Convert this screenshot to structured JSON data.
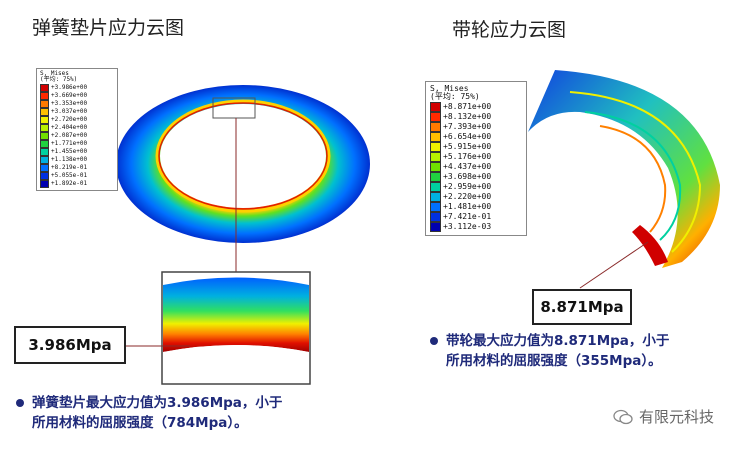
{
  "left": {
    "title": "弹簧垫片应力云图",
    "legend": {
      "header1": "S, Mises",
      "header2": "(平均: 75%)",
      "values": [
        "+3.986e+00",
        "+3.669e+00",
        "+3.353e+00",
        "+3.037e+00",
        "+2.720e+00",
        "+2.404e+00",
        "+2.087e+00",
        "+1.771e+00",
        "+1.455e+00",
        "+1.138e+00",
        "+8.219e-01",
        "+5.055e-01",
        "+1.892e-01"
      ]
    },
    "callout": "3.986Mpa",
    "note_line1": "弹簧垫片最大应力值为3.986Mpa，小于",
    "note_line2": "所用材料的屈服强度（784Mpa）。"
  },
  "right": {
    "title": "带轮应力云图",
    "legend": {
      "header1": "S, Mises",
      "header2": "(平均: 75%)",
      "values": [
        "+8.871e+00",
        "+8.132e+00",
        "+7.393e+00",
        "+6.654e+00",
        "+5.915e+00",
        "+5.176e+00",
        "+4.437e+00",
        "+3.698e+00",
        "+2.959e+00",
        "+2.220e+00",
        "+1.481e+00",
        "+7.421e-01",
        "+3.112e-03"
      ]
    },
    "callout": "8.871Mpa",
    "note_line1": "带轮最大应力值为8.871Mpa，小于",
    "note_line2": "所用材料的屈服强度（355Mpa）。"
  },
  "watermark": "有限元科技",
  "colors": {
    "scale": [
      "#d00000",
      "#ff2a00",
      "#ff7a00",
      "#ffc000",
      "#f0f000",
      "#b8f000",
      "#70e000",
      "#20d040",
      "#00d0a0",
      "#00b0e0",
      "#0070ff",
      "#0030e0",
      "#0000b0"
    ],
    "accent_text": "#1f2a7a"
  }
}
